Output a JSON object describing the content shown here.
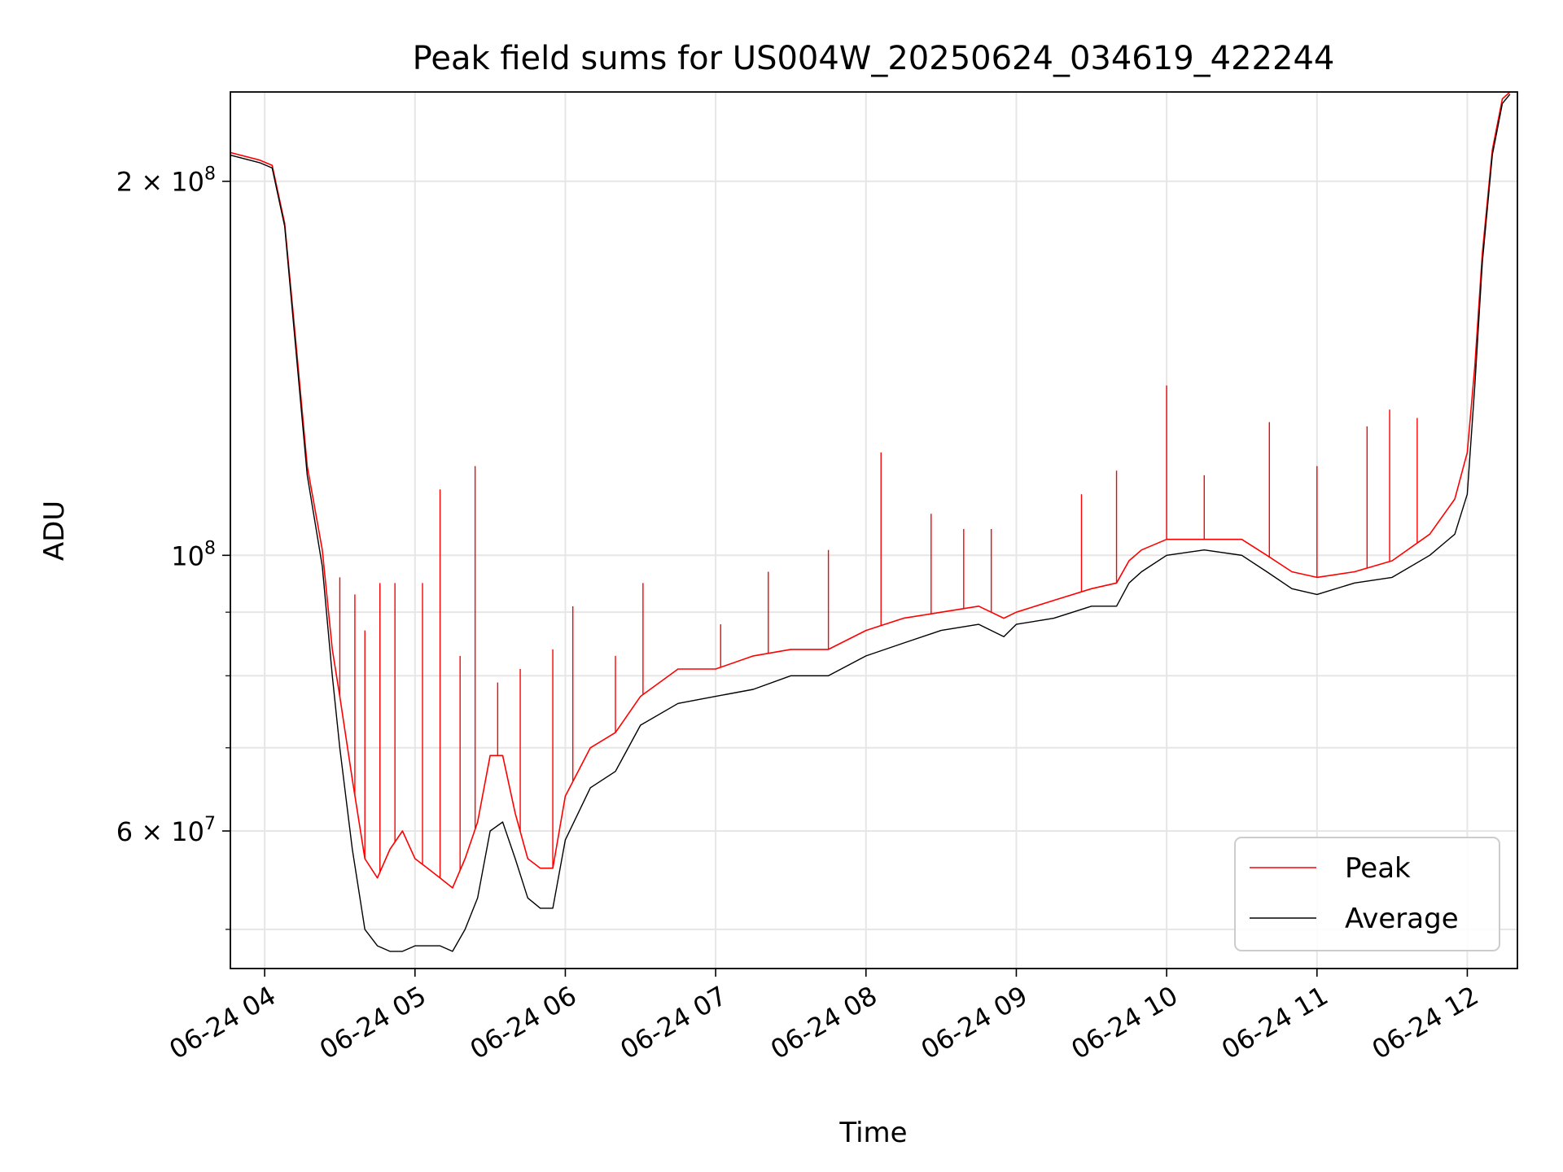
{
  "chart_data": {
    "type": "line",
    "title": "Peak field sums for US004W_20250624_034619_422244",
    "xlabel": "Time",
    "ylabel": "ADU",
    "y_scale": "log",
    "ylim": [
      46500000,
      236000000
    ],
    "xlim": [
      "2025-06-24 03:46:19",
      "2025-06-24 12:20:00"
    ],
    "grid": true,
    "legend_position": "lower right",
    "x_ticks": [
      {
        "t": "2025-06-24 04:00",
        "label": "06-24 04"
      },
      {
        "t": "2025-06-24 05:00",
        "label": "06-24 05"
      },
      {
        "t": "2025-06-24 06:00",
        "label": "06-24 06"
      },
      {
        "t": "2025-06-24 07:00",
        "label": "06-24 07"
      },
      {
        "t": "2025-06-24 08:00",
        "label": "06-24 08"
      },
      {
        "t": "2025-06-24 09:00",
        "label": "06-24 09"
      },
      {
        "t": "2025-06-24 10:00",
        "label": "06-24 10"
      },
      {
        "t": "2025-06-24 11:00",
        "label": "06-24 11"
      },
      {
        "t": "2025-06-24 12:00",
        "label": "06-24 12"
      }
    ],
    "y_major_ticks": [
      {
        "v": 60000000,
        "mant": "6",
        "exp": "7",
        "label": "6 × 10^7"
      },
      {
        "v": 100000000,
        "mant": "",
        "exp": "8",
        "label": "10^8"
      },
      {
        "v": 200000000,
        "mant": "2",
        "exp": "8",
        "label": "2 × 10^8"
      }
    ],
    "y_minor_ticks": [
      50000000,
      70000000,
      80000000,
      90000000
    ],
    "series": [
      {
        "name": "Peak",
        "color": "#ff0000",
        "x": [
          "2025-06-24 03:46",
          "2025-06-24 03:58",
          "2025-06-24 04:03",
          "2025-06-24 04:08",
          "2025-06-24 04:12",
          "2025-06-24 04:17",
          "2025-06-24 04:23",
          "2025-06-24 04:27",
          "2025-06-24 04:30",
          "2025-06-24 04:35",
          "2025-06-24 04:40",
          "2025-06-24 04:45",
          "2025-06-24 04:50",
          "2025-06-24 04:55",
          "2025-06-24 05:00",
          "2025-06-24 05:05",
          "2025-06-24 05:10",
          "2025-06-24 05:15",
          "2025-06-24 05:20",
          "2025-06-24 05:25",
          "2025-06-24 05:30",
          "2025-06-24 05:35",
          "2025-06-24 05:40",
          "2025-06-24 05:45",
          "2025-06-24 05:50",
          "2025-06-24 05:55",
          "2025-06-24 06:00",
          "2025-06-24 06:10",
          "2025-06-24 06:20",
          "2025-06-24 06:30",
          "2025-06-24 06:45",
          "2025-06-24 07:00",
          "2025-06-24 07:15",
          "2025-06-24 07:30",
          "2025-06-24 07:45",
          "2025-06-24 08:00",
          "2025-06-24 08:15",
          "2025-06-24 08:30",
          "2025-06-24 08:45",
          "2025-06-24 08:55",
          "2025-06-24 09:00",
          "2025-06-24 09:15",
          "2025-06-24 09:30",
          "2025-06-24 09:40",
          "2025-06-24 09:45",
          "2025-06-24 09:50",
          "2025-06-24 10:00",
          "2025-06-24 10:15",
          "2025-06-24 10:30",
          "2025-06-24 10:40",
          "2025-06-24 10:50",
          "2025-06-24 11:00",
          "2025-06-24 11:15",
          "2025-06-24 11:30",
          "2025-06-24 11:45",
          "2025-06-24 11:55",
          "2025-06-24 12:00",
          "2025-06-24 12:03",
          "2025-06-24 12:06",
          "2025-06-24 12:10",
          "2025-06-24 12:14",
          "2025-06-24 12:17"
        ],
        "values": [
          211000000,
          208000000,
          206000000,
          185000000,
          152000000,
          118000000,
          101000000,
          84000000,
          77000000,
          66000000,
          57000000,
          55000000,
          58000000,
          60000000,
          57000000,
          56000000,
          55000000,
          54000000,
          57000000,
          61000000,
          69000000,
          69000000,
          62000000,
          57000000,
          56000000,
          56000000,
          64000000,
          70000000,
          72000000,
          77000000,
          81000000,
          81000000,
          83000000,
          84000000,
          84000000,
          87000000,
          89000000,
          90000000,
          91000000,
          89000000,
          90000000,
          92000000,
          94000000,
          95000000,
          99000000,
          101000000,
          103000000,
          103000000,
          103000000,
          100000000,
          97000000,
          96000000,
          97000000,
          99000000,
          104000000,
          111000000,
          121000000,
          142000000,
          175000000,
          212000000,
          233000000,
          236000000
        ],
        "spikes": [
          {
            "t": "2025-06-24 04:30",
            "v": 96000000
          },
          {
            "t": "2025-06-24 04:36",
            "v": 93000000
          },
          {
            "t": "2025-06-24 04:40",
            "v": 87000000
          },
          {
            "t": "2025-06-24 04:46",
            "v": 95000000
          },
          {
            "t": "2025-06-24 04:52",
            "v": 95000000
          },
          {
            "t": "2025-06-24 05:03",
            "v": 95000000
          },
          {
            "t": "2025-06-24 05:10",
            "v": 113000000
          },
          {
            "t": "2025-06-24 05:18",
            "v": 83000000
          },
          {
            "t": "2025-06-24 05:24",
            "v": 118000000
          },
          {
            "t": "2025-06-24 05:33",
            "v": 79000000
          },
          {
            "t": "2025-06-24 05:42",
            "v": 81000000
          },
          {
            "t": "2025-06-24 05:55",
            "v": 84000000
          },
          {
            "t": "2025-06-24 06:03",
            "v": 91000000
          },
          {
            "t": "2025-06-24 06:20",
            "v": 83000000
          },
          {
            "t": "2025-06-24 06:31",
            "v": 95000000
          },
          {
            "t": "2025-06-24 07:02",
            "v": 88000000
          },
          {
            "t": "2025-06-24 07:21",
            "v": 97000000
          },
          {
            "t": "2025-06-24 07:45",
            "v": 101000000
          },
          {
            "t": "2025-06-24 08:06",
            "v": 121000000
          },
          {
            "t": "2025-06-24 08:26",
            "v": 108000000
          },
          {
            "t": "2025-06-24 08:39",
            "v": 105000000
          },
          {
            "t": "2025-06-24 08:50",
            "v": 105000000
          },
          {
            "t": "2025-06-24 09:26",
            "v": 112000000
          },
          {
            "t": "2025-06-24 09:40",
            "v": 117000000
          },
          {
            "t": "2025-06-24 10:00",
            "v": 137000000
          },
          {
            "t": "2025-06-24 10:15",
            "v": 116000000
          },
          {
            "t": "2025-06-24 10:41",
            "v": 128000000
          },
          {
            "t": "2025-06-24 11:00",
            "v": 118000000
          },
          {
            "t": "2025-06-24 11:20",
            "v": 127000000
          },
          {
            "t": "2025-06-24 11:29",
            "v": 131000000
          },
          {
            "t": "2025-06-24 11:40",
            "v": 129000000
          }
        ]
      },
      {
        "name": "Average",
        "color": "#000000",
        "x": [
          "2025-06-24 03:46",
          "2025-06-24 03:58",
          "2025-06-24 04:03",
          "2025-06-24 04:08",
          "2025-06-24 04:12",
          "2025-06-24 04:17",
          "2025-06-24 04:23",
          "2025-06-24 04:27",
          "2025-06-24 04:30",
          "2025-06-24 04:35",
          "2025-06-24 04:40",
          "2025-06-24 04:45",
          "2025-06-24 04:50",
          "2025-06-24 04:55",
          "2025-06-24 05:00",
          "2025-06-24 05:05",
          "2025-06-24 05:10",
          "2025-06-24 05:15",
          "2025-06-24 05:20",
          "2025-06-24 05:25",
          "2025-06-24 05:30",
          "2025-06-24 05:35",
          "2025-06-24 05:40",
          "2025-06-24 05:45",
          "2025-06-24 05:50",
          "2025-06-24 05:55",
          "2025-06-24 06:00",
          "2025-06-24 06:10",
          "2025-06-24 06:20",
          "2025-06-24 06:30",
          "2025-06-24 06:45",
          "2025-06-24 07:00",
          "2025-06-24 07:15",
          "2025-06-24 07:30",
          "2025-06-24 07:45",
          "2025-06-24 08:00",
          "2025-06-24 08:15",
          "2025-06-24 08:30",
          "2025-06-24 08:45",
          "2025-06-24 08:55",
          "2025-06-24 09:00",
          "2025-06-24 09:15",
          "2025-06-24 09:30",
          "2025-06-24 09:40",
          "2025-06-24 09:45",
          "2025-06-24 09:50",
          "2025-06-24 10:00",
          "2025-06-24 10:15",
          "2025-06-24 10:30",
          "2025-06-24 10:40",
          "2025-06-24 10:50",
          "2025-06-24 11:00",
          "2025-06-24 11:15",
          "2025-06-24 11:30",
          "2025-06-24 11:45",
          "2025-06-24 11:55",
          "2025-06-24 12:00",
          "2025-06-24 12:03",
          "2025-06-24 12:06",
          "2025-06-24 12:10",
          "2025-06-24 12:14",
          "2025-06-24 12:17"
        ],
        "values": [
          210000000,
          207000000,
          205000000,
          184000000,
          150000000,
          116000000,
          98000000,
          80000000,
          70000000,
          58000000,
          50000000,
          48500000,
          48000000,
          48000000,
          48500000,
          48500000,
          48500000,
          48000000,
          50000000,
          53000000,
          60000000,
          61000000,
          57000000,
          53000000,
          52000000,
          52000000,
          59000000,
          65000000,
          67000000,
          73000000,
          76000000,
          77000000,
          78000000,
          80000000,
          80000000,
          83000000,
          85000000,
          87000000,
          88000000,
          86000000,
          88000000,
          89000000,
          91000000,
          91000000,
          95000000,
          97000000,
          100000000,
          101000000,
          100000000,
          97000000,
          94000000,
          93000000,
          95000000,
          96000000,
          100000000,
          104000000,
          112000000,
          137000000,
          172000000,
          210000000,
          231000000,
          235000000
        ]
      }
    ]
  }
}
